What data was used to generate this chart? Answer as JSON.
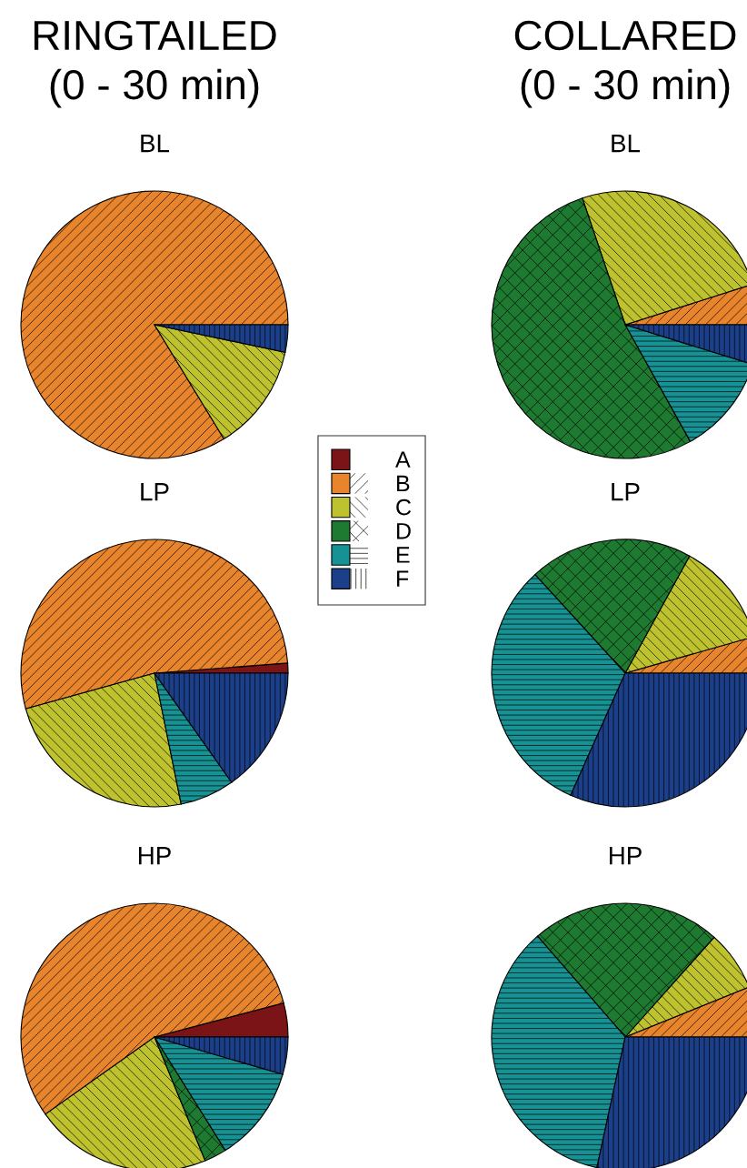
{
  "chart_data": [
    {
      "type": "pie",
      "title": "RINGTAILED\n(0 - 30 min)",
      "subtitle": "BL",
      "categories": [
        null,
        null,
        null,
        null,
        null,
        null
      ],
      "values": [
        0,
        83.7,
        13.0,
        0,
        0,
        3.3
      ],
      "colors": [
        "#7b1416",
        "#e8842c",
        "#bfc22f",
        "#1e7a30",
        "#169294",
        "#1c3f8a"
      ]
    },
    {
      "type": "pie",
      "title": "LP",
      "categories": [
        null,
        null,
        null,
        null,
        null,
        null
      ],
      "values": [
        1.2,
        53.1,
        23.9,
        0,
        6.6,
        15.2
      ],
      "colors": [
        "#7b1416",
        "#e8842c",
        "#bfc22f",
        "#1e7a30",
        "#169294",
        "#1c3f8a"
      ]
    },
    {
      "type": "pie",
      "title": "HP",
      "categories": [
        "A",
        "B",
        "C",
        "D",
        "E",
        "F"
      ],
      "values": [
        4.1,
        55.7,
        21.4,
        2.7,
        11.6,
        4.5
      ],
      "colors": [
        "#7b1416",
        "#e8842c",
        "#bfc22f",
        "#1e7a30",
        "#169294",
        "#1c3f8a"
      ],
      "legend": "top right"
    },
    {
      "type": "pie",
      "title": "COLLARED\n(0 - 30 min)",
      "subtitle": "BL",
      "categories": [
        null,
        null,
        null,
        null,
        null,
        null
      ],
      "values": [
        0,
        4.9,
        25.3,
        52.9,
        12.1,
        4.8
      ],
      "colors": [
        "#7b1416",
        "#e8842c",
        "#bfc22f",
        "#1e7a30",
        "#169294",
        "#1c3f8a"
      ]
    },
    {
      "type": "pie",
      "title": "LP",
      "categories": [
        null,
        null,
        null,
        null,
        null,
        null
      ],
      "values": [
        0,
        4.4,
        12.6,
        19.8,
        31.5,
        31.7
      ],
      "colors": [
        "#7b1416",
        "#e8842c",
        "#bfc22f",
        "#1e7a30",
        "#169294",
        "#1c3f8a"
      ]
    },
    {
      "type": "pie",
      "title": "HP",
      "categories": [
        null,
        null,
        null,
        null,
        null,
        null
      ],
      "values": [
        0,
        6.1,
        7.3,
        23.0,
        35.2,
        28.4
      ],
      "colors": [
        "#7b1416",
        "#e8842c",
        "#bfc22f",
        "#1e7a30",
        "#169294",
        "#1c3f8a"
      ]
    }
  ]
}
